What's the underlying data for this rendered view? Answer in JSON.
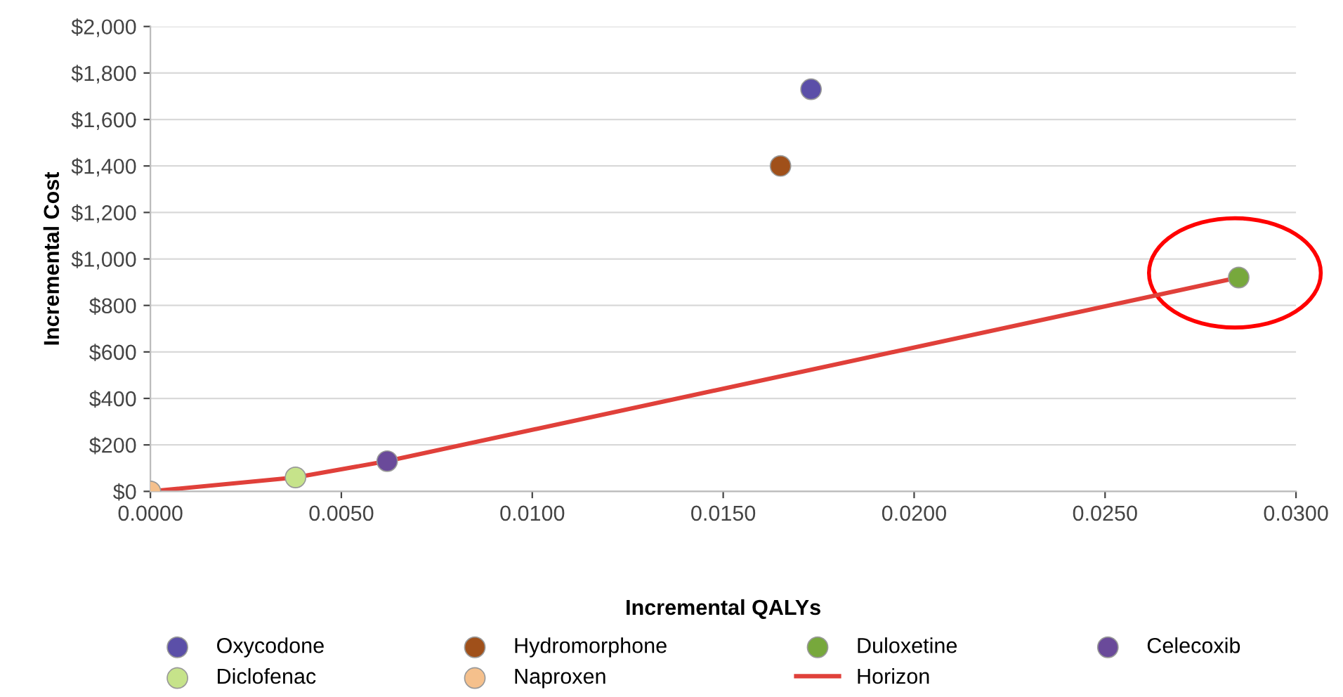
{
  "chart_data": {
    "type": "scatter",
    "xlabel": "Incremental QALYs",
    "ylabel": "Incremental Cost",
    "series": [
      {
        "name": "Oxycodone",
        "color": "#5b4fa8",
        "x": [
          0.0173
        ],
        "values": [
          1730
        ]
      },
      {
        "name": "Hydromorphone",
        "color": "#a0501a",
        "x": [
          0.0165
        ],
        "values": [
          1400
        ]
      },
      {
        "name": "Duloxetine",
        "color": "#77a83c",
        "x": [
          0.0285
        ],
        "values": [
          920
        ]
      },
      {
        "name": "Celecoxib",
        "color": "#6a4a9a",
        "x": [
          0.0062
        ],
        "values": [
          130
        ]
      },
      {
        "name": "Diclofenac",
        "color": "#c6e38a",
        "x": [
          0.0038
        ],
        "values": [
          60
        ]
      },
      {
        "name": "Naproxen",
        "color": "#f5c08c",
        "x": [
          0.0
        ],
        "values": [
          0
        ]
      },
      {
        "name": "Horizon",
        "type": "line",
        "marker": "none",
        "color": "#e0403a",
        "x": [
          0.0,
          0.0038,
          0.0062,
          0.0285
        ],
        "values": [
          0,
          60,
          130,
          920
        ]
      }
    ],
    "xlim": [
      0,
      0.03
    ],
    "xticks": [
      {
        "value": 0,
        "label": "0.0000"
      },
      {
        "value": 0.005,
        "label": "0.0050"
      },
      {
        "value": 0.01,
        "label": "0.0100"
      },
      {
        "value": 0.015,
        "label": "0.0150"
      },
      {
        "value": 0.02,
        "label": "0.0200"
      },
      {
        "value": 0.025,
        "label": "0.0250"
      },
      {
        "value": 0.03,
        "label": "0.0300"
      }
    ],
    "ylim": [
      0,
      2000
    ],
    "yticks": [
      {
        "value": 0,
        "label": "$0"
      },
      {
        "value": 200,
        "label": "$200"
      },
      {
        "value": 400,
        "label": "$400"
      },
      {
        "value": 600,
        "label": "$600"
      },
      {
        "value": 800,
        "label": "$800"
      },
      {
        "value": 1000,
        "label": "$1,000"
      },
      {
        "value": 1200,
        "label": "$1,200"
      },
      {
        "value": 1400,
        "label": "$1,400"
      },
      {
        "value": 1600,
        "label": "$1,600"
      },
      {
        "value": 1800,
        "label": "$1,800"
      },
      {
        "value": 2000,
        "label": "$2,000"
      }
    ],
    "grid": "y",
    "legend": "bottom",
    "marker": "circle"
  }
}
